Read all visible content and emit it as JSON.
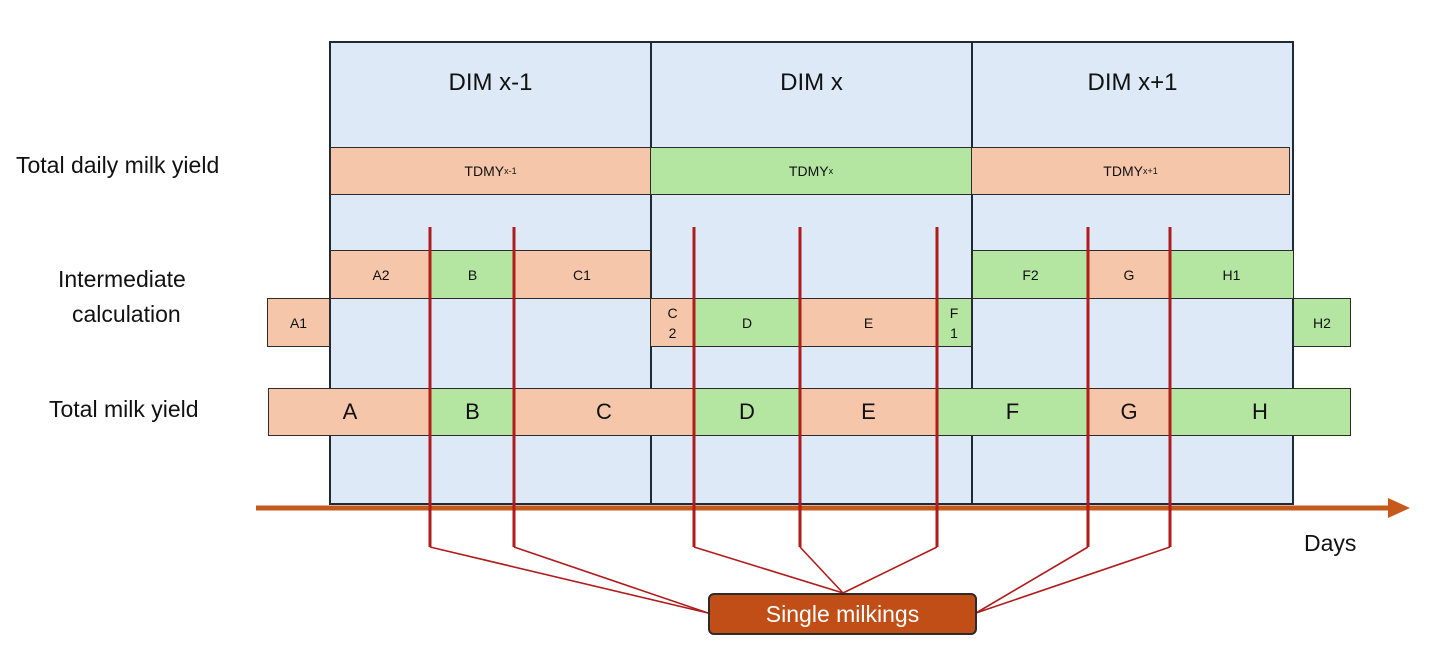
{
  "day_columns": [
    {
      "label": "DIM x-1"
    },
    {
      "label": "DIM x"
    },
    {
      "label": "DIM x+1"
    }
  ],
  "row_labels": {
    "total_daily": "Total daily milk yield",
    "intermediate_line1": "Intermediate",
    "intermediate_line2": "calculation",
    "total_milk": "Total milk yield"
  },
  "tdmy": [
    {
      "base": "TDMY",
      "sub": "x-1"
    },
    {
      "base": "TDMY",
      "sub": "x"
    },
    {
      "base": "TDMY",
      "sub": "x+1"
    }
  ],
  "intermediate_top": [
    "A2",
    "B",
    "C1",
    "F2",
    "G",
    "H1"
  ],
  "intermediate_bottom": [
    "A1",
    "C",
    "2",
    "D",
    "E",
    "F",
    "1",
    "H2"
  ],
  "total_segments": [
    "A",
    "B",
    "C",
    "D",
    "E",
    "F",
    "G",
    "H"
  ],
  "axis_label": "Days",
  "callout": "Single milkings",
  "colors": {
    "salmon": "#f6c6aa",
    "green": "#b5e6a1",
    "column": "#dde9f6",
    "milking_line": "#b11b1b",
    "axis": "#c55a1c"
  }
}
